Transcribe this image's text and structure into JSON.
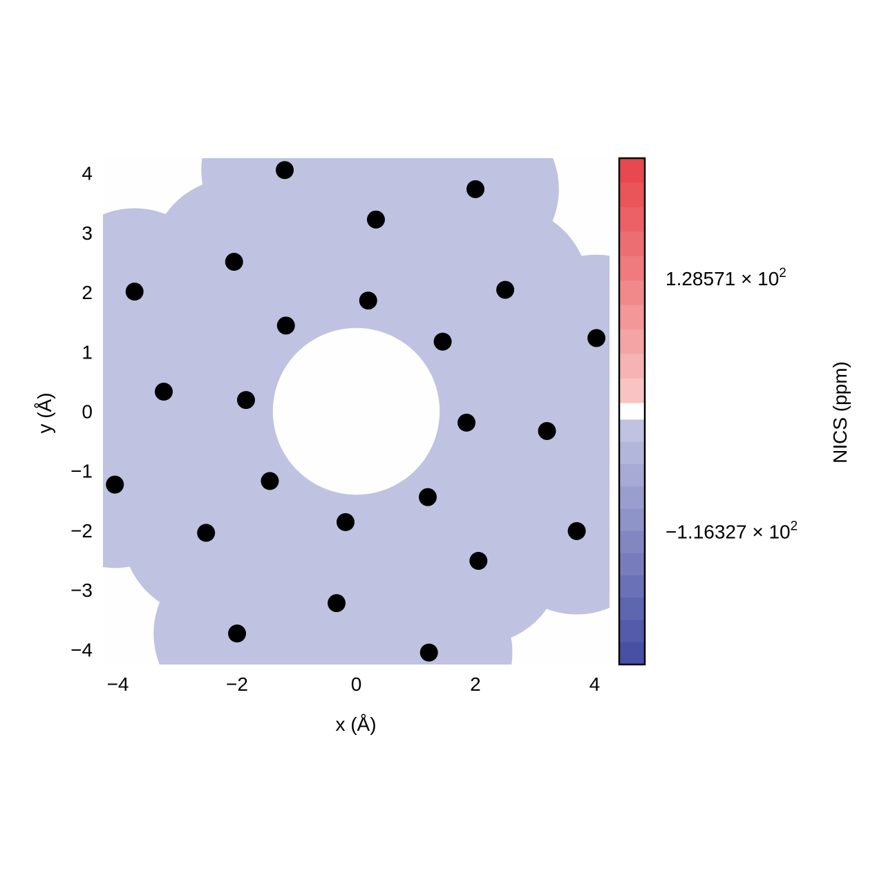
{
  "chart_data": {
    "type": "scatter",
    "title": "",
    "xlabel": "x (Å)",
    "ylabel": "y (Å)",
    "xlim": [
      -4.25,
      4.25
    ],
    "ylim": [
      -4.25,
      4.25
    ],
    "x_ticks": [
      -4,
      -2,
      0,
      2,
      4
    ],
    "y_ticks": [
      -4,
      -3,
      -2,
      -1,
      0,
      1,
      2,
      3,
      4
    ],
    "x_tick_labels": [
      "−4",
      "−2",
      "0",
      "2",
      "4"
    ],
    "y_tick_labels": [
      "−4",
      "−3",
      "−2",
      "−1",
      "0",
      "1",
      "2",
      "3",
      "4"
    ],
    "grid": false,
    "legend": "none",
    "field": {
      "description_level": "uniform negative shielding region",
      "fill_color": "#bfc2e0",
      "inner_hole_radius": 1.4
    },
    "atoms": {
      "color": "#000000",
      "x": [
        -1.2,
        2.0,
        0.33,
        -2.05,
        -3.72,
        2.5,
        0.2,
        -1.18,
        1.45,
        4.03,
        -3.23,
        -1.85,
        1.85,
        3.2,
        -4.05,
        -1.45,
        1.2,
        -0.18,
        -2.52,
        3.7,
        2.05,
        -0.33,
        -2.0,
        1.22
      ],
      "y": [
        4.05,
        3.73,
        3.22,
        2.51,
        2.01,
        2.04,
        1.86,
        1.44,
        1.17,
        1.23,
        0.33,
        0.19,
        -0.19,
        -0.33,
        -1.23,
        -1.17,
        -1.44,
        -1.86,
        -2.04,
        -2.01,
        -2.51,
        -3.22,
        -3.73,
        -4.05
      ]
    },
    "colorbar": {
      "label": "NICS (ppm)",
      "tick_labels": [
        {
          "mantissa": "1.28571",
          "base": "10",
          "exponent": "2",
          "value": 128.571
        },
        {
          "mantissa": "−1.16327",
          "base": "10",
          "exponent": "2",
          "value": -116.327
        }
      ],
      "range": [
        -245,
        245
      ],
      "positive_colors": [
        "#e8484f",
        "#e95559",
        "#eb6166",
        "#ed6e72",
        "#ef7b7e",
        "#f1898b",
        "#f39798",
        "#f5a4a5",
        "#f7b3b3",
        "#f9c3c3"
      ],
      "negative_colors": [
        "#bfc2e0",
        "#b2b6da",
        "#a6aad4",
        "#9a9ece",
        "#8e93c8",
        "#8287c2",
        "#767cbc",
        "#6a71b6",
        "#5f66b0",
        "#535baa",
        "#4850a5"
      ],
      "center_color": "#ffffff"
    }
  }
}
